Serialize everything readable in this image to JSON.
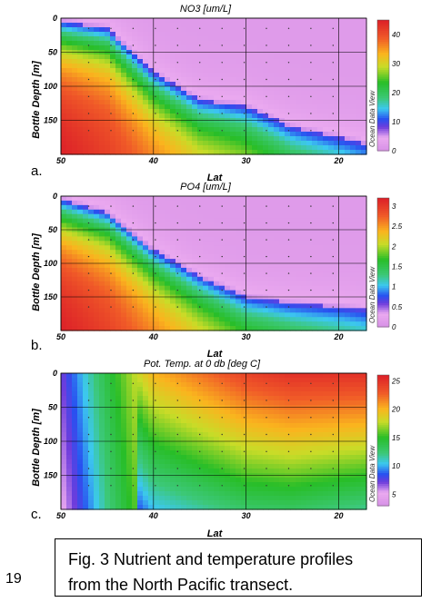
{
  "page_number": "19",
  "caption": {
    "line1": "Fig. 3 Nutrient and temperature profiles",
    "line2": "from the North Pacific transect."
  },
  "chart_data": [
    {
      "type": "heatmap",
      "panel_label": "a.",
      "title": "NO3 [um/L]",
      "xlabel": "Lat",
      "ylabel": "Bottle Depth [m]",
      "x_ticks": [
        "50",
        "40",
        "30",
        "20"
      ],
      "y_ticks": [
        "0",
        "50",
        "100",
        "150"
      ],
      "xlim": [
        50,
        17
      ],
      "ylim": [
        0,
        200
      ],
      "colorbar_ticks": [
        "40",
        "30",
        "20",
        "10",
        "0"
      ],
      "colorbar_range": [
        0,
        45
      ],
      "colorbar_watermark": "Ocean Data View",
      "nutricline_depth_by_lat": {
        "lat": [
          50,
          45,
          40,
          35,
          30,
          25,
          20,
          17
        ],
        "depth": [
          5,
          15,
          80,
          120,
          130,
          160,
          175,
          185
        ]
      },
      "grid": true
    },
    {
      "type": "heatmap",
      "panel_label": "b.",
      "title": "PO4 [um/L]",
      "xlabel": "Lat",
      "ylabel": "Bottle Depth [m]",
      "x_ticks": [
        "50",
        "40",
        "30",
        "20"
      ],
      "y_ticks": [
        "0",
        "50",
        "100",
        "150"
      ],
      "xlim": [
        50,
        17
      ],
      "ylim": [
        0,
        200
      ],
      "colorbar_ticks": [
        "3",
        "2.5",
        "2",
        "1.5",
        "1",
        "0.5",
        "0"
      ],
      "colorbar_range": [
        0,
        3.2
      ],
      "colorbar_watermark": "Ocean Data View",
      "nutricline_depth_by_lat": {
        "lat": [
          50,
          45,
          40,
          35,
          30,
          25,
          20,
          17
        ],
        "depth": [
          5,
          25,
          80,
          120,
          150,
          160,
          165,
          170
        ]
      },
      "grid": true
    },
    {
      "type": "heatmap",
      "panel_label": "c.",
      "title": "Pot. Temp. at 0 db [deg C]",
      "xlabel": "Lat",
      "ylabel": "Bottle Depth [m]",
      "x_ticks": [
        "50",
        "40",
        "30",
        "20"
      ],
      "y_ticks": [
        "0",
        "50",
        "100",
        "150"
      ],
      "xlim": [
        50,
        17
      ],
      "ylim": [
        0,
        200
      ],
      "colorbar_ticks": [
        "25",
        "20",
        "15",
        "10",
        "5"
      ],
      "colorbar_range": [
        3,
        26
      ],
      "colorbar_watermark": "Ocean Data View",
      "surface_temp_by_lat": {
        "lat": [
          50,
          45,
          40,
          35,
          30,
          25,
          20,
          17
        ],
        "temp": [
          7,
          14,
          20,
          22,
          24,
          25,
          25,
          25
        ]
      },
      "grid": true
    }
  ]
}
